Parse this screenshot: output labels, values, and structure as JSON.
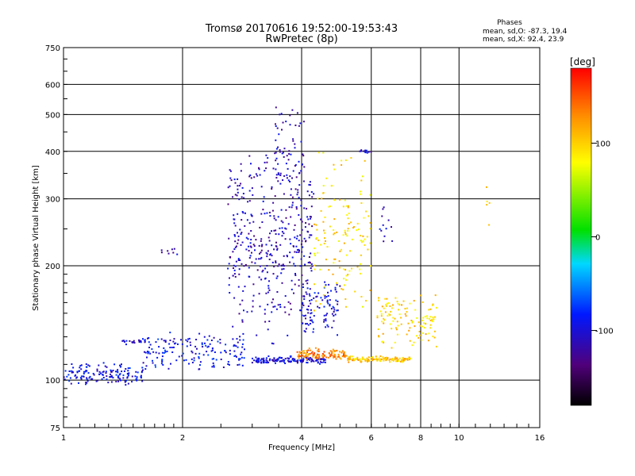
{
  "chart_data": {
    "type": "scatter",
    "title": "Tromsø 20170616 19:52:00-19:53:43",
    "subtitle": "RwPretec (8p)",
    "xlabel": "Frequency [MHz]",
    "ylabel": "Stationary phase Virtual Height [km]",
    "x_scale": "log",
    "y_scale": "log",
    "xlim": [
      1,
      16
    ],
    "ylim": [
      75,
      750
    ],
    "x_ticks": [
      1,
      2,
      4,
      6,
      8,
      10,
      16
    ],
    "y_ticks": [
      75,
      100,
      200,
      300,
      400,
      500,
      600,
      750
    ],
    "grid": true,
    "stats": {
      "heading": "Phases",
      "line_o": "mean, sd,O: -87.3, 19.4",
      "line_x": "mean, sd,X: 92.4, 23.9"
    },
    "colorbar": {
      "label": "[deg]",
      "range": [
        -180,
        180
      ],
      "ticks": [
        100,
        0,
        -100
      ],
      "colormap": "rainbow (black → purple → blue → cyan → green → yellow → red)"
    },
    "clusters": [
      {
        "x_range": [
          1.0,
          1.6
        ],
        "y_range": [
          96,
          112
        ],
        "phase": -95,
        "count": 150
      },
      {
        "x_range": [
          1.6,
          2.9
        ],
        "y_range": [
          105,
          135
        ],
        "phase": -90,
        "count": 160
      },
      {
        "x_range": [
          1.4,
          1.65
        ],
        "y_range": [
          124,
          130
        ],
        "phase": -100,
        "count": 25
      },
      {
        "x_range": [
          1.75,
          1.95
        ],
        "y_range": [
          210,
          225
        ],
        "phase": -110,
        "count": 8
      },
      {
        "x_range": [
          2.6,
          4.3
        ],
        "y_range": [
          120,
          420
        ],
        "phase": -110,
        "count": 420
      },
      {
        "x_range": [
          3.4,
          4.1
        ],
        "y_range": [
          300,
          540
        ],
        "phase": -110,
        "count": 60
      },
      {
        "x_range": [
          3.0,
          4.6
        ],
        "y_range": [
          110,
          116
        ],
        "phase": -100,
        "count": 140
      },
      {
        "x_range": [
          4.0,
          5.0
        ],
        "y_range": [
          130,
          185
        ],
        "phase": -95,
        "count": 90
      },
      {
        "x_range": [
          3.9,
          5.2
        ],
        "y_range": [
          112,
          122
        ],
        "phase": 135,
        "count": 110
      },
      {
        "x_range": [
          5.2,
          7.6
        ],
        "y_range": [
          111,
          116
        ],
        "phase": 105,
        "count": 130
      },
      {
        "x_range": [
          4.3,
          6.0
        ],
        "y_range": [
          140,
          420
        ],
        "phase": 95,
        "count": 140
      },
      {
        "x_range": [
          6.2,
          8.8
        ],
        "y_range": [
          120,
          170
        ],
        "phase": 98,
        "count": 120
      },
      {
        "x_range": [
          5.6,
          6.0
        ],
        "y_range": [
          395,
          405
        ],
        "phase": -105,
        "count": 12
      },
      {
        "x_range": [
          6.3,
          6.8
        ],
        "y_range": [
          220,
          300
        ],
        "phase": -100,
        "count": 12
      },
      {
        "x_range": [
          11.5,
          12.0
        ],
        "y_range": [
          240,
          380
        ],
        "phase": 100,
        "count": 5
      }
    ]
  }
}
